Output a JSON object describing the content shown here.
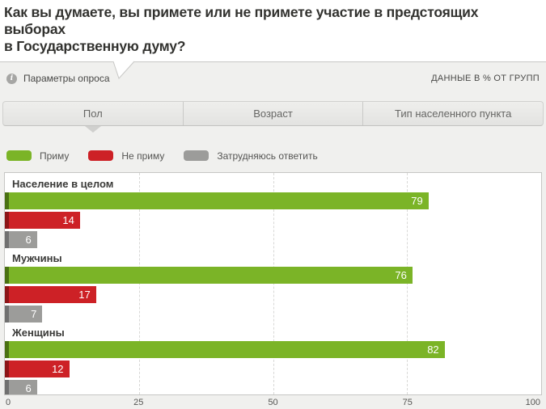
{
  "title_lines": [
    "Как вы думаете, вы примете или не примете участие в предстоящих выборах",
    "в Государственную думу?"
  ],
  "subheader": {
    "info_icon": "i",
    "params_label": "Параметры опроса",
    "data_note": "ДАННЫЕ В % ОТ ГРУПП"
  },
  "tabs": [
    {
      "label": "Пол",
      "active": true
    },
    {
      "label": "Возраст",
      "active": false
    },
    {
      "label": "Тип населенного пункта",
      "active": false
    }
  ],
  "legend": [
    {
      "label": "Приму",
      "color": "#7bb427"
    },
    {
      "label": "Не приму",
      "color": "#cd2126"
    },
    {
      "label": "Затрудняюсь ответить",
      "color": "#9c9c9a"
    }
  ],
  "colors": {
    "page_background": "#f0f0ee",
    "panel_background": "#ffffff",
    "border": "#c8c8c6",
    "active_tab_pointer": "#d0d0ce"
  },
  "chart_data": {
    "type": "bar",
    "orientation": "horizontal",
    "title": "Как вы думаете, вы примете или не примете участие в предстоящих выборах в Государственную думу?",
    "units": "% от групп",
    "categories": [
      "Население в целом",
      "Мужчины",
      "Женщины"
    ],
    "series": [
      {
        "name": "Приму",
        "color": "#7bb427",
        "edge_color": "#4a7112",
        "values": [
          79,
          76,
          82
        ]
      },
      {
        "name": "Не приму",
        "color": "#cd2126",
        "edge_color": "#8c1517",
        "values": [
          14,
          17,
          12
        ]
      },
      {
        "name": "Затрудняюсь ответить",
        "color": "#9c9c9a",
        "edge_color": "#707070",
        "values": [
          6,
          7,
          6
        ]
      }
    ],
    "xlim": [
      0,
      100
    ],
    "xticks": [
      0,
      25,
      50,
      75,
      100
    ],
    "gridlines_at": [
      25,
      50,
      75
    ],
    "grid": "dashed-vertical",
    "legend_position": "top-left",
    "value_labels": "inside-end"
  }
}
